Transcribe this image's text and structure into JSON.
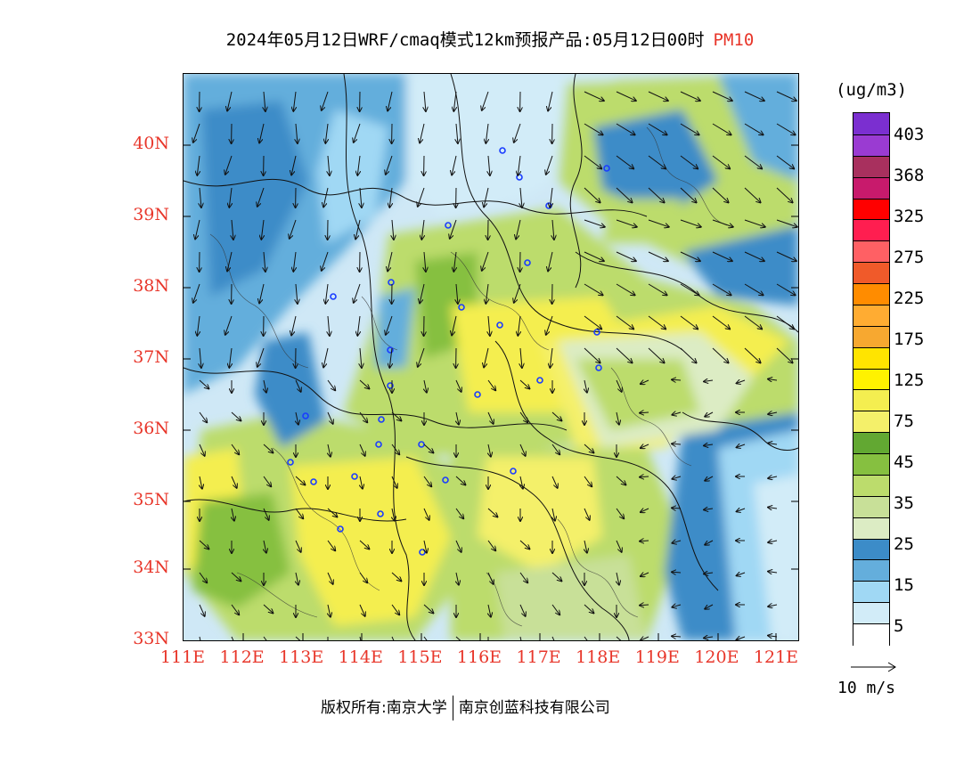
{
  "title": {
    "main": "2024年05月12日WRF/cmaq模式12km预报产品:05月12日00时",
    "pollutant": "PM10",
    "pollutant_color": "#e8362a"
  },
  "map": {
    "lat_labels": [
      "40N",
      "39N",
      "38N",
      "37N",
      "36N",
      "35N",
      "34N",
      "33N"
    ],
    "lon_labels": [
      "111E",
      "112E",
      "113E",
      "114E",
      "115E",
      "116E",
      "117E",
      "118E",
      "119E",
      "120E",
      "121E"
    ],
    "lat_range": [
      33,
      41
    ],
    "lon_range": [
      111,
      121.5
    ],
    "label_color": "#e8362a"
  },
  "colorbar": {
    "unit": "(ug/m3)",
    "labels": [
      "403",
      "368",
      "325",
      "275",
      "225",
      "175",
      "125",
      "75",
      "45",
      "35",
      "25",
      "15",
      "5"
    ],
    "colors_top_to_bottom": [
      "#7b2fd0",
      "#9a3bd2",
      "#a8305e",
      "#c81a6c",
      "#ff0000",
      "#ff1e50",
      "#ff6064",
      "#f05a2a",
      "#ff8c00",
      "#ffac32",
      "#f7a830",
      "#ffe400",
      "#fff200",
      "#f4ee50",
      "#f4f06a",
      "#62a832",
      "#86c040",
      "#bcdc6c",
      "#c8e098",
      "#dcecc4",
      "#3c8cc8",
      "#64aedc",
      "#a0d8f4",
      "#d2ecf8",
      "#ffffff"
    ]
  },
  "wind_reference": {
    "label": "10 m/s"
  },
  "footer": {
    "left": "版权所有:南京大学",
    "right": "南京创蓝科技有限公司"
  }
}
